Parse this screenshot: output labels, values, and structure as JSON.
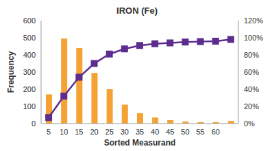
{
  "chart_data": {
    "type": "pareto",
    "title": "IRON (Fe)",
    "x_label": "Sorted Measurand",
    "y_label": "Frequency",
    "categories": [
      "5",
      "10",
      "15",
      "20",
      "25",
      "30",
      "35",
      "40",
      "45",
      "50",
      "55",
      "60",
      null
    ],
    "series": [
      {
        "type": "bar",
        "color": "#f5a133",
        "axis": "y",
        "values": [
          170,
          495,
          440,
          295,
          200,
          110,
          60,
          35,
          20,
          12,
          8,
          8,
          15
        ]
      },
      {
        "type": "line",
        "color": "#5c2d8f",
        "axis": "y2",
        "marker": "square",
        "line_style": "solid",
        "values": [
          7,
          32,
          54,
          70,
          81,
          87,
          91,
          93,
          94,
          95,
          95.5,
          96,
          98
        ]
      }
    ],
    "ylim": [
      0,
      600
    ],
    "yticks": [
      0,
      100,
      200,
      300,
      400,
      500,
      600
    ],
    "y2lim": [
      0,
      120
    ],
    "y2ticks": [
      {
        "value": 0,
        "label": "0%"
      },
      {
        "value": 20,
        "label": "20%"
      },
      {
        "value": 40,
        "label": "40%"
      },
      {
        "value": 60,
        "label": "60%"
      },
      {
        "value": 80,
        "label": "80%"
      },
      {
        "value": 100,
        "label": "100%"
      },
      {
        "value": 120,
        "label": "120%"
      }
    ],
    "grid": false
  }
}
